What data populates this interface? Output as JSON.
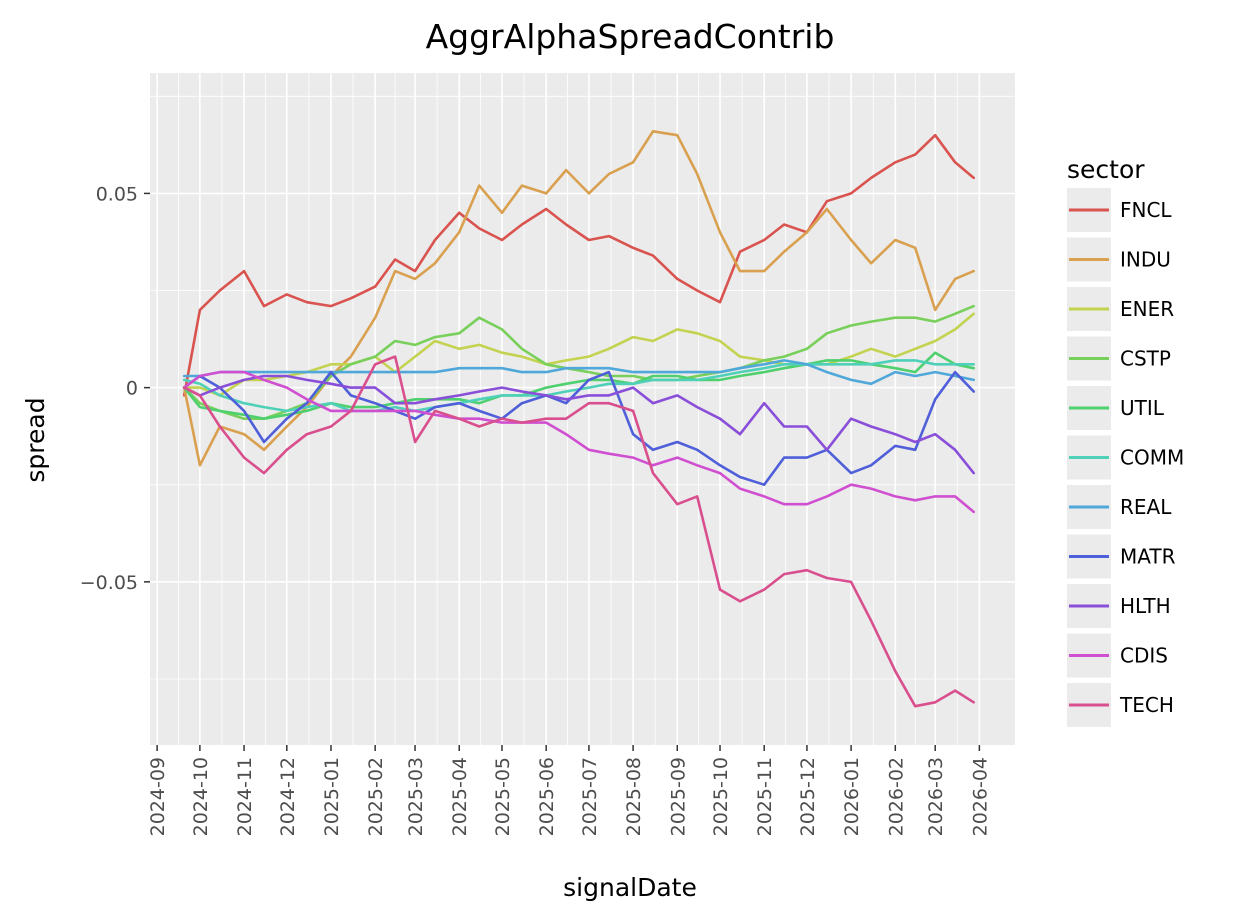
{
  "chart_data": {
    "type": "line",
    "title": "AggrAlphaSpreadContrib",
    "xlabel": "signalDate",
    "ylabel": "spread",
    "legend_title": "sector",
    "legend_position": "right",
    "grid": true,
    "xlim": [
      "2024-08-27",
      "2026-04-26"
    ],
    "ylim": [
      -0.092,
      0.081
    ],
    "x_ticks": [
      "2024-09",
      "2024-10",
      "2024-11",
      "2024-12",
      "2025-01",
      "2025-02",
      "2025-03",
      "2025-04",
      "2025-05",
      "2025-06",
      "2025-07",
      "2025-08",
      "2025-09",
      "2025-10",
      "2025-11",
      "2025-12",
      "2026-01",
      "2026-02",
      "2026-03",
      "2026-04"
    ],
    "y_ticks": [
      {
        "value": 0.05,
        "label": "0.05"
      },
      {
        "value": 0,
        "label": "0"
      },
      {
        "value": -0.05,
        "label": "−0.05"
      }
    ],
    "x": [
      "2024-09-20",
      "2024-10-01",
      "2024-10-15",
      "2024-11-01",
      "2024-11-15",
      "2024-12-01",
      "2024-12-15",
      "2025-01-01",
      "2025-01-15",
      "2025-02-01",
      "2025-02-15",
      "2025-03-01",
      "2025-03-15",
      "2025-04-01",
      "2025-04-15",
      "2025-05-01",
      "2025-05-15",
      "2025-06-01",
      "2025-06-15",
      "2025-07-01",
      "2025-07-15",
      "2025-08-01",
      "2025-08-15",
      "2025-09-01",
      "2025-09-15",
      "2025-10-01",
      "2025-10-15",
      "2025-11-01",
      "2025-11-15",
      "2025-12-01",
      "2025-12-15",
      "2026-01-01",
      "2026-01-15",
      "2026-02-01",
      "2026-02-15",
      "2026-03-01",
      "2026-03-15",
      "2026-03-28"
    ],
    "series": [
      {
        "name": "FNCL",
        "color": "#D9534F",
        "values": [
          -0.002,
          0.02,
          0.025,
          0.03,
          0.021,
          0.024,
          0.022,
          0.021,
          0.023,
          0.026,
          0.033,
          0.03,
          0.038,
          0.045,
          0.041,
          0.038,
          0.042,
          0.046,
          0.042,
          0.038,
          0.039,
          0.036,
          0.034,
          0.028,
          0.025,
          0.022,
          0.035,
          0.038,
          0.042,
          0.04,
          0.048,
          0.05,
          0.054,
          0.058,
          0.06,
          0.065,
          0.058,
          0.054
        ]
      },
      {
        "name": "INDU",
        "color": "#D9A04F",
        "values": [
          0.0,
          -0.02,
          -0.01,
          -0.012,
          -0.016,
          -0.01,
          -0.005,
          0.003,
          0.008,
          0.018,
          0.03,
          0.028,
          0.032,
          0.04,
          0.052,
          0.045,
          0.052,
          0.05,
          0.056,
          0.05,
          0.055,
          0.058,
          0.066,
          0.065,
          0.055,
          0.04,
          0.03,
          0.03,
          0.035,
          0.04,
          0.046,
          0.038,
          0.032,
          0.038,
          0.036,
          0.02,
          0.028,
          0.03
        ]
      },
      {
        "name": "ENER",
        "color": "#C3D34F",
        "values": [
          0.0,
          0.0,
          -0.002,
          0.002,
          0.002,
          0.003,
          0.004,
          0.006,
          0.006,
          0.008,
          0.004,
          0.008,
          0.012,
          0.01,
          0.011,
          0.009,
          0.008,
          0.006,
          0.007,
          0.008,
          0.01,
          0.013,
          0.012,
          0.015,
          0.014,
          0.012,
          0.008,
          0.007,
          0.006,
          0.006,
          0.006,
          0.008,
          0.01,
          0.008,
          0.01,
          0.012,
          0.015,
          0.019
        ]
      },
      {
        "name": "CSTP",
        "color": "#78D05A",
        "values": [
          0.0,
          -0.004,
          -0.006,
          -0.008,
          -0.008,
          -0.006,
          -0.004,
          0.003,
          0.006,
          0.008,
          0.012,
          0.011,
          0.013,
          0.014,
          0.018,
          0.015,
          0.01,
          0.006,
          0.005,
          0.004,
          0.003,
          0.003,
          0.002,
          0.002,
          0.003,
          0.004,
          0.005,
          0.007,
          0.008,
          0.01,
          0.014,
          0.016,
          0.017,
          0.018,
          0.018,
          0.017,
          0.019,
          0.021
        ]
      },
      {
        "name": "UTIL",
        "color": "#4FD06E",
        "values": [
          0.0,
          -0.005,
          -0.006,
          -0.007,
          -0.008,
          -0.007,
          -0.006,
          -0.004,
          -0.005,
          -0.005,
          -0.004,
          -0.003,
          -0.003,
          -0.003,
          -0.004,
          -0.002,
          -0.002,
          0.0,
          0.001,
          0.002,
          0.002,
          0.001,
          0.003,
          0.003,
          0.002,
          0.002,
          0.003,
          0.004,
          0.005,
          0.006,
          0.007,
          0.007,
          0.006,
          0.005,
          0.004,
          0.009,
          0.006,
          0.005
        ]
      },
      {
        "name": "COMM",
        "color": "#4FD0B9",
        "values": [
          0.002,
          0.001,
          -0.002,
          -0.004,
          -0.005,
          -0.006,
          -0.005,
          -0.004,
          -0.006,
          -0.006,
          -0.005,
          -0.006,
          -0.005,
          -0.004,
          -0.003,
          -0.002,
          -0.002,
          -0.002,
          -0.001,
          0.0,
          0.001,
          0.001,
          0.002,
          0.002,
          0.002,
          0.003,
          0.004,
          0.005,
          0.006,
          0.006,
          0.006,
          0.006,
          0.006,
          0.007,
          0.007,
          0.006,
          0.006,
          0.006
        ]
      },
      {
        "name": "REAL",
        "color": "#4FA8D9",
        "values": [
          0.003,
          0.003,
          0.004,
          0.004,
          0.004,
          0.004,
          0.004,
          0.004,
          0.004,
          0.004,
          0.004,
          0.004,
          0.004,
          0.005,
          0.005,
          0.005,
          0.004,
          0.004,
          0.005,
          0.005,
          0.005,
          0.004,
          0.004,
          0.004,
          0.004,
          0.004,
          0.005,
          0.006,
          0.007,
          0.006,
          0.004,
          0.002,
          0.001,
          0.004,
          0.003,
          0.004,
          0.003,
          0.002
        ]
      },
      {
        "name": "MATR",
        "color": "#4F5FD9",
        "values": [
          0.0,
          0.003,
          0.0,
          -0.006,
          -0.014,
          -0.008,
          -0.004,
          0.004,
          -0.002,
          -0.004,
          -0.006,
          -0.008,
          -0.005,
          -0.004,
          -0.006,
          -0.008,
          -0.004,
          -0.002,
          -0.004,
          0.002,
          0.004,
          -0.012,
          -0.016,
          -0.014,
          -0.016,
          -0.02,
          -0.023,
          -0.025,
          -0.018,
          -0.018,
          -0.016,
          -0.022,
          -0.02,
          -0.015,
          -0.016,
          -0.003,
          0.004,
          -0.001
        ]
      },
      {
        "name": "HLTH",
        "color": "#8A4FD9",
        "values": [
          0.0,
          -0.002,
          0.0,
          0.002,
          0.003,
          0.003,
          0.002,
          0.001,
          0.0,
          0.0,
          -0.004,
          -0.004,
          -0.003,
          -0.002,
          -0.001,
          0.0,
          -0.001,
          -0.002,
          -0.003,
          -0.002,
          -0.002,
          0.0,
          -0.004,
          -0.002,
          -0.005,
          -0.008,
          -0.012,
          -0.004,
          -0.01,
          -0.01,
          -0.016,
          -0.008,
          -0.01,
          -0.012,
          -0.014,
          -0.012,
          -0.016,
          -0.022
        ]
      },
      {
        "name": "CDIS",
        "color": "#D04FD0",
        "values": [
          0.0,
          0.003,
          0.004,
          0.004,
          0.002,
          0.0,
          -0.003,
          -0.006,
          -0.006,
          -0.006,
          -0.006,
          -0.006,
          -0.007,
          -0.008,
          -0.008,
          -0.009,
          -0.009,
          -0.009,
          -0.012,
          -0.016,
          -0.017,
          -0.018,
          -0.02,
          -0.018,
          -0.02,
          -0.022,
          -0.026,
          -0.028,
          -0.03,
          -0.03,
          -0.028,
          -0.025,
          -0.026,
          -0.028,
          -0.029,
          -0.028,
          -0.028,
          -0.032
        ]
      },
      {
        "name": "TECH",
        "color": "#D94F8E",
        "values": [
          0.0,
          -0.002,
          -0.01,
          -0.018,
          -0.022,
          -0.016,
          -0.012,
          -0.01,
          -0.006,
          0.006,
          0.008,
          -0.014,
          -0.006,
          -0.008,
          -0.01,
          -0.008,
          -0.009,
          -0.008,
          -0.008,
          -0.004,
          -0.004,
          -0.006,
          -0.022,
          -0.03,
          -0.028,
          -0.052,
          -0.055,
          -0.052,
          -0.048,
          -0.047,
          -0.049,
          -0.05,
          -0.06,
          -0.073,
          -0.082,
          -0.081,
          -0.078,
          -0.081
        ]
      }
    ]
  }
}
